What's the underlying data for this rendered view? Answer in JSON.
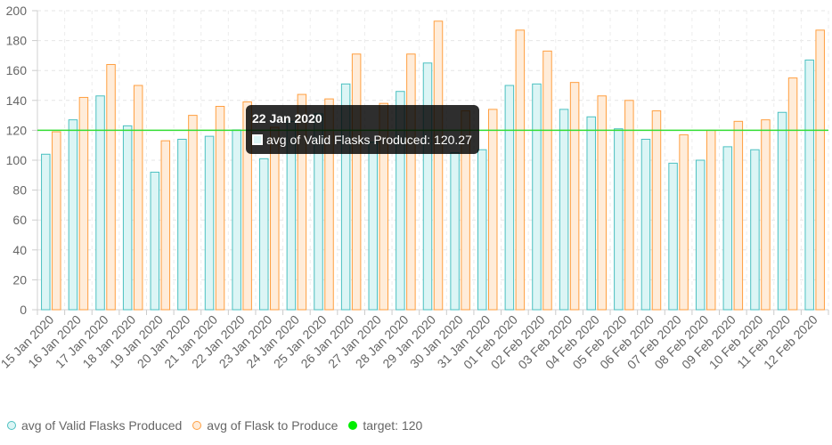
{
  "chart_data": {
    "type": "bar",
    "categories": [
      "15 Jan 2020",
      "16 Jan 2020",
      "17 Jan 2020",
      "18 Jan 2020",
      "19 Jan 2020",
      "20 Jan 2020",
      "21 Jan 2020",
      "22 Jan 2020",
      "23 Jan 2020",
      "24 Jan 2020",
      "25 Jan 2020",
      "26 Jan 2020",
      "27 Jan 2020",
      "28 Jan 2020",
      "29 Jan 2020",
      "30 Jan 2020",
      "31 Jan 2020",
      "01 Feb 2020",
      "02 Feb 2020",
      "03 Feb 2020",
      "04 Feb 2020",
      "05 Feb 2020",
      "06 Feb 2020",
      "07 Feb 2020",
      "08 Feb 2020",
      "09 Feb 2020",
      "10 Feb 2020",
      "11 Feb 2020",
      "12 Feb 2020"
    ],
    "series": [
      {
        "name": "avg of Valid Flasks Produced",
        "border": "#4bc0c0",
        "fill": "#dcf5f5",
        "values": [
          104,
          127,
          143,
          123,
          92,
          114,
          116,
          120.27,
          101,
          126,
          131,
          151,
          112,
          146,
          165,
          105,
          107,
          150,
          151,
          134,
          129,
          121,
          114,
          98,
          100,
          109,
          107,
          132,
          167
        ]
      },
      {
        "name": "avg of Flask to Produce",
        "border": "#ff9f40",
        "fill": "#ffecd9",
        "values": [
          119,
          142,
          164,
          150,
          113,
          130,
          136,
          139,
          122,
          144,
          141,
          171,
          138,
          171,
          193,
          133,
          134,
          187,
          173,
          152,
          143,
          140,
          133,
          117,
          120,
          126,
          127,
          155,
          187
        ]
      }
    ],
    "target": {
      "name": "target: 120",
      "value": 120,
      "color": "#33dd33"
    },
    "ylim": [
      0,
      200
    ],
    "yticks": [
      0,
      20,
      40,
      60,
      80,
      100,
      120,
      140,
      160,
      180,
      200
    ],
    "grid": true,
    "legend": "bottom-left",
    "title": "",
    "xlabel": "",
    "ylabel": ""
  },
  "tooltip": {
    "title": "22 Jan 2020",
    "label": "avg of Valid Flasks Produced: 120.27"
  },
  "legend": {
    "items": [
      {
        "label": "avg of Valid Flasks Produced",
        "border": "#4bc0c0",
        "fill": "#dcf5f5"
      },
      {
        "label": "avg of Flask to Produce",
        "border": "#ff9f40",
        "fill": "#ffecd9"
      },
      {
        "label": "target: 120",
        "border": "#00ee00",
        "fill": "#00ee00"
      }
    ]
  }
}
